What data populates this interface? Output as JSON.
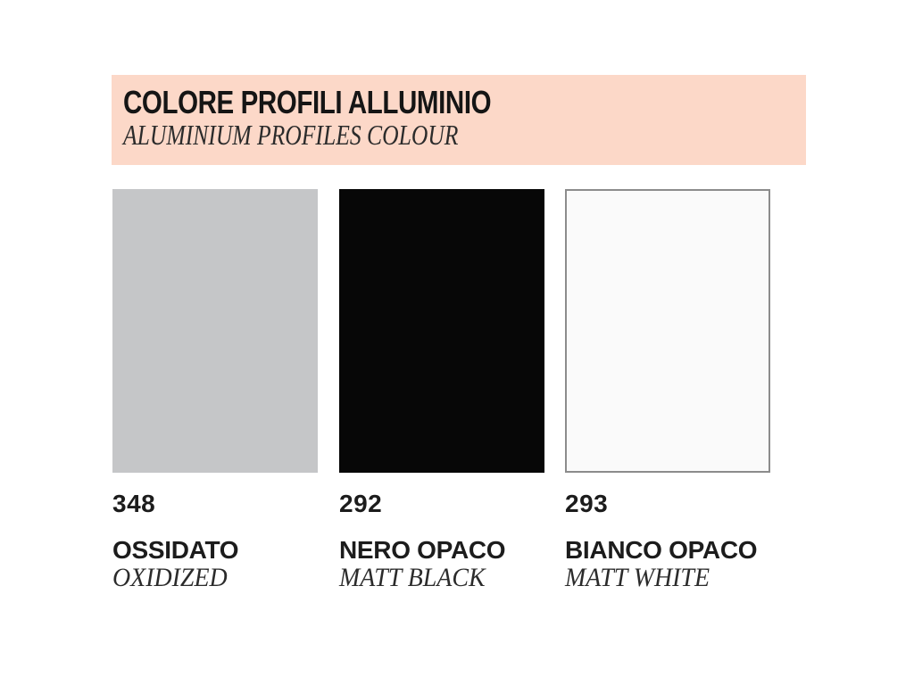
{
  "header": {
    "title": "COLORE PROFILI ALLUMINIO",
    "subtitle": "ALUMINIUM PROFILES COLOUR",
    "background": "#fcd8c8"
  },
  "swatches": [
    {
      "code": "348",
      "name_it": "OSSIDATO",
      "name_en": "OXIDIZED",
      "color": "#c5c6c8",
      "border_color": "none"
    },
    {
      "code": "292",
      "name_it": "NERO OPACO",
      "name_en": "MATT BLACK",
      "color": "#070707",
      "border_color": "none"
    },
    {
      "code": "293",
      "name_it": "BIANCO OPACO",
      "name_en": "MATT WHITE",
      "color": "#fafafa",
      "border_color": "#8c8c8c"
    }
  ]
}
